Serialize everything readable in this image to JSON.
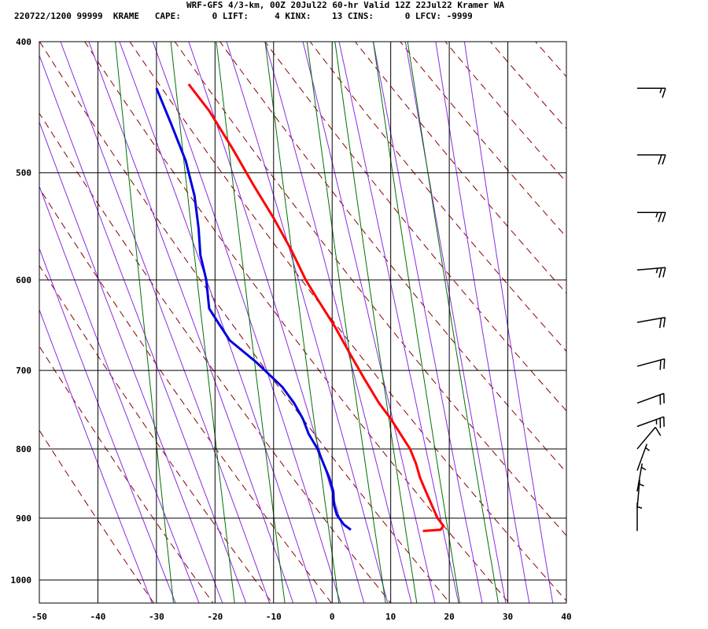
{
  "header": {
    "line1": "WRF-GFS 4/3-km, 00Z 20Jul22 60-hr Valid 12Z 22Jul22 Kramer WA",
    "line2": "220722/1200 99999  KRAME   CAPE:      0 LIFT:     4 KINX:    13 CINS:      0 LFCV: -9999"
  },
  "chart_data": {
    "type": "line",
    "subtype": "skew-t log-p sounding",
    "title": "WRF-GFS 4/3-km, 00Z 20Jul22 60-hr Valid 12Z 22Jul22 Kramer WA",
    "xlabel": "",
    "ylabel": "",
    "xlim": [
      -50,
      40
    ],
    "ylim_pressure": [
      400,
      1040
    ],
    "y_scale": "log (pressure)",
    "x_ticks": [
      -50,
      -40,
      -30,
      -20,
      -10,
      0,
      10,
      20,
      30,
      40
    ],
    "y_ticks": [
      400,
      500,
      600,
      700,
      800,
      900,
      1000
    ],
    "grid": true,
    "background_lines": {
      "isotherms_color": "#000000",
      "dry_adiabats_color": "#8b0000",
      "moist_adiabats_color": "#8a2be2",
      "mixing_ratio_color": "#007000"
    },
    "series": [
      {
        "color": "#ff0000",
        "points": [
          {
            "p": 920,
            "x": 15.5
          },
          {
            "p": 918,
            "x": 18.5
          },
          {
            "p": 912,
            "x": 19.0
          },
          {
            "p": 900,
            "x": 18.0
          },
          {
            "p": 880,
            "x": 17.0
          },
          {
            "p": 860,
            "x": 16.0
          },
          {
            "p": 840,
            "x": 15.0
          },
          {
            "p": 820,
            "x": 14.3
          },
          {
            "p": 800,
            "x": 13.3
          },
          {
            "p": 760,
            "x": 10.0
          },
          {
            "p": 740,
            "x": 8.0
          },
          {
            "p": 710,
            "x": 5.5
          },
          {
            "p": 680,
            "x": 3.0
          },
          {
            "p": 650,
            "x": 0.5
          },
          {
            "p": 620,
            "x": -2.5
          },
          {
            "p": 600,
            "x": -4.5
          },
          {
            "p": 570,
            "x": -7.0
          },
          {
            "p": 540,
            "x": -10.0
          },
          {
            "p": 510,
            "x": -13.5
          },
          {
            "p": 480,
            "x": -17.0
          },
          {
            "p": 450,
            "x": -21.0
          },
          {
            "p": 430,
            "x": -24.5
          }
        ]
      },
      {
        "color": "#0000e0",
        "points": [
          {
            "p": 918,
            "x": 3.2
          },
          {
            "p": 910,
            "x": 2.0
          },
          {
            "p": 895,
            "x": 0.8
          },
          {
            "p": 880,
            "x": 0.3
          },
          {
            "p": 860,
            "x": 0.2
          },
          {
            "p": 840,
            "x": -0.5
          },
          {
            "p": 820,
            "x": -1.5
          },
          {
            "p": 800,
            "x": -2.5
          },
          {
            "p": 780,
            "x": -4.0
          },
          {
            "p": 760,
            "x": -5.0
          },
          {
            "p": 740,
            "x": -6.5
          },
          {
            "p": 720,
            "x": -8.5
          },
          {
            "p": 690,
            "x": -13.0
          },
          {
            "p": 665,
            "x": -17.5
          },
          {
            "p": 645,
            "x": -19.5
          },
          {
            "p": 630,
            "x": -21.0
          },
          {
            "p": 600,
            "x": -21.5
          },
          {
            "p": 575,
            "x": -22.5
          },
          {
            "p": 550,
            "x": -22.8
          },
          {
            "p": 520,
            "x": -23.5
          },
          {
            "p": 490,
            "x": -25.0
          },
          {
            "p": 460,
            "x": -27.5
          },
          {
            "p": 433,
            "x": -30.0
          }
        ]
      }
    ],
    "wind_barbs": [
      {
        "p": 433,
        "dir": 270,
        "speed": 15
      },
      {
        "p": 485,
        "dir": 270,
        "speed": 20
      },
      {
        "p": 535,
        "dir": 270,
        "speed": 25
      },
      {
        "p": 590,
        "dir": 265,
        "speed": 25
      },
      {
        "p": 645,
        "dir": 260,
        "speed": 20
      },
      {
        "p": 695,
        "dir": 255,
        "speed": 20
      },
      {
        "p": 740,
        "dir": 250,
        "speed": 20
      },
      {
        "p": 770,
        "dir": 250,
        "speed": 25
      },
      {
        "p": 800,
        "dir": 220,
        "speed": 10
      },
      {
        "p": 830,
        "dir": 200,
        "speed": 5
      },
      {
        "p": 860,
        "dir": 190,
        "speed": 5
      },
      {
        "p": 885,
        "dir": 185,
        "speed": 5
      },
      {
        "p": 920,
        "dir": 180,
        "speed": 5
      }
    ]
  }
}
